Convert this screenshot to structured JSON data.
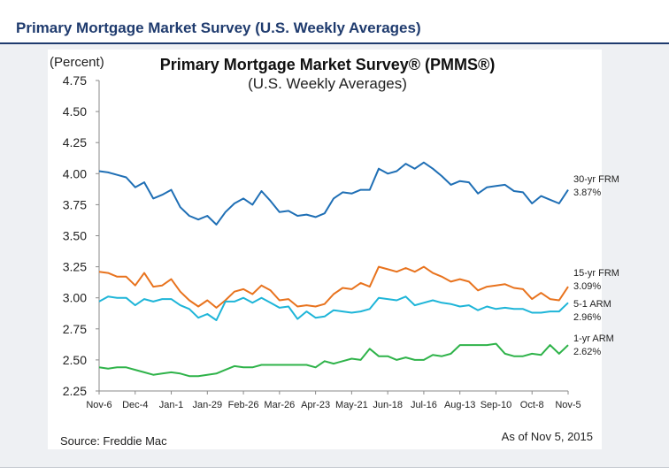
{
  "header": {
    "title": "Primary Mortgage Market Survey (U.S. Weekly Averages)"
  },
  "chart_data": {
    "type": "line",
    "title": "Primary Mortgage Market Survey® (PMMS®)",
    "subtitle": "(U.S. Weekly Averages)",
    "ylabel": "(Percent)",
    "ylim": [
      2.25,
      4.75
    ],
    "yticks": [
      "4.75",
      "4.50",
      "4.25",
      "4.00",
      "3.75",
      "3.50",
      "3.25",
      "3.00",
      "2.75",
      "2.50",
      "2.25"
    ],
    "xticks": [
      "Nov-6",
      "Dec-4",
      "Jan-1",
      "Jan-29",
      "Feb-26",
      "Mar-26",
      "Apr-23",
      "May-21",
      "Jun-18",
      "Jul-16",
      "Aug-13",
      "Sep-10",
      "Oct-8",
      "Nov-5"
    ],
    "source": "Source: Freddie Mac",
    "asof": "As of Nov 5, 2015",
    "series": [
      {
        "name": "30-yr FRM",
        "last_label": "3.87%",
        "color": "#1f6fb5",
        "values": [
          4.02,
          4.01,
          3.99,
          3.97,
          3.89,
          3.93,
          3.8,
          3.83,
          3.87,
          3.73,
          3.66,
          3.63,
          3.66,
          3.59,
          3.69,
          3.76,
          3.8,
          3.75,
          3.86,
          3.78,
          3.69,
          3.7,
          3.66,
          3.67,
          3.65,
          3.68,
          3.8,
          3.85,
          3.84,
          3.87,
          3.87,
          4.04,
          4.0,
          4.02,
          4.08,
          4.04,
          4.09,
          4.04,
          3.98,
          3.91,
          3.94,
          3.93,
          3.84,
          3.89,
          3.9,
          3.91,
          3.86,
          3.85,
          3.76,
          3.82,
          3.79,
          3.76,
          3.87
        ]
      },
      {
        "name": "15-yr FRM",
        "last_label": "3.09%",
        "color": "#e8731e",
        "values": [
          3.21,
          3.2,
          3.17,
          3.17,
          3.1,
          3.2,
          3.09,
          3.1,
          3.15,
          3.05,
          2.98,
          2.93,
          2.98,
          2.92,
          2.98,
          3.05,
          3.07,
          3.03,
          3.1,
          3.06,
          2.98,
          2.99,
          2.93,
          2.94,
          2.93,
          2.95,
          3.03,
          3.08,
          3.07,
          3.12,
          3.09,
          3.25,
          3.23,
          3.21,
          3.24,
          3.21,
          3.25,
          3.2,
          3.17,
          3.13,
          3.15,
          3.13,
          3.06,
          3.09,
          3.1,
          3.11,
          3.08,
          3.07,
          2.99,
          3.04,
          2.99,
          2.98,
          3.09
        ]
      },
      {
        "name": "5-1 ARM",
        "last_label": "2.96%",
        "color": "#1eb5d8",
        "values": [
          2.97,
          3.01,
          3.0,
          3.0,
          2.94,
          2.99,
          2.97,
          2.99,
          2.99,
          2.94,
          2.91,
          2.84,
          2.87,
          2.82,
          2.97,
          2.97,
          3.0,
          2.96,
          3.0,
          2.96,
          2.92,
          2.93,
          2.83,
          2.89,
          2.84,
          2.85,
          2.9,
          2.89,
          2.88,
          2.89,
          2.91,
          3.0,
          2.99,
          2.98,
          3.01,
          2.94,
          2.96,
          2.98,
          2.96,
          2.95,
          2.93,
          2.94,
          2.9,
          2.93,
          2.91,
          2.92,
          2.91,
          2.91,
          2.88,
          2.88,
          2.89,
          2.89,
          2.96
        ]
      },
      {
        "name": "1-yr ARM",
        "last_label": "2.62%",
        "color": "#2fb34a",
        "values": [
          2.44,
          2.43,
          2.44,
          2.44,
          2.42,
          2.4,
          2.38,
          2.39,
          2.4,
          2.39,
          2.37,
          2.37,
          2.38,
          2.39,
          2.42,
          2.45,
          2.44,
          2.44,
          2.46,
          2.46,
          2.46,
          2.46,
          2.46,
          2.46,
          2.44,
          2.49,
          2.47,
          2.49,
          2.51,
          2.5,
          2.59,
          2.53,
          2.53,
          2.5,
          2.52,
          2.5,
          2.5,
          2.54,
          2.53,
          2.55,
          2.62,
          2.62,
          2.62,
          2.62,
          2.63,
          2.55,
          2.53,
          2.53,
          2.55,
          2.54,
          2.62,
          2.55,
          2.62
        ]
      }
    ]
  }
}
